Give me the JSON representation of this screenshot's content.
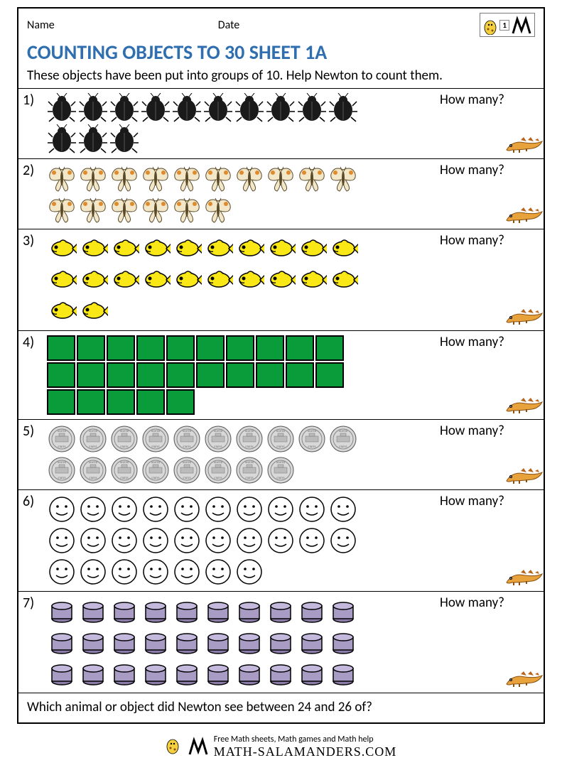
{
  "header": {
    "name_label": "Name",
    "date_label": "Date",
    "grade_badge": "1"
  },
  "title": "COUNTING OBJECTS TO 30 SHEET 1A",
  "instructions": "These objects have been put into groups of 10. Help Newton to count them.",
  "how_many_label": "How many?",
  "rows": [
    {
      "num": "1)",
      "type": "beetle",
      "lines": [
        10,
        3
      ]
    },
    {
      "num": "2)",
      "type": "butterfly",
      "lines": [
        10,
        6
      ]
    },
    {
      "num": "3)",
      "type": "fish",
      "lines": [
        10,
        10,
        2
      ]
    },
    {
      "num": "4)",
      "type": "square",
      "lines": [
        10,
        10,
        5
      ]
    },
    {
      "num": "5)",
      "type": "coin",
      "lines": [
        10,
        8
      ]
    },
    {
      "num": "6)",
      "type": "smiley",
      "lines": [
        10,
        10,
        7
      ]
    },
    {
      "num": "7)",
      "type": "cylinder",
      "lines": [
        10,
        10,
        10
      ]
    }
  ],
  "bottom_question": "Which animal or object did Newton see between 24 and 26 of?",
  "footer": {
    "tagline": "Free Math sheets, Math games and Math help",
    "site": "MATH-SALAMANDERS.COM"
  },
  "colors": {
    "title": "#2f6eaf",
    "square_fill": "#0a9b3b",
    "fish_fill": "#f9e716",
    "butterfly_fill": "#f2e7c9",
    "butterfly_accent": "#e08b2c",
    "cylinder_fill": "#a89bc4",
    "coin_fill": "#d0d0d0",
    "salamander_body": "#e8a23c",
    "salamander_spots": "#b8651a"
  }
}
